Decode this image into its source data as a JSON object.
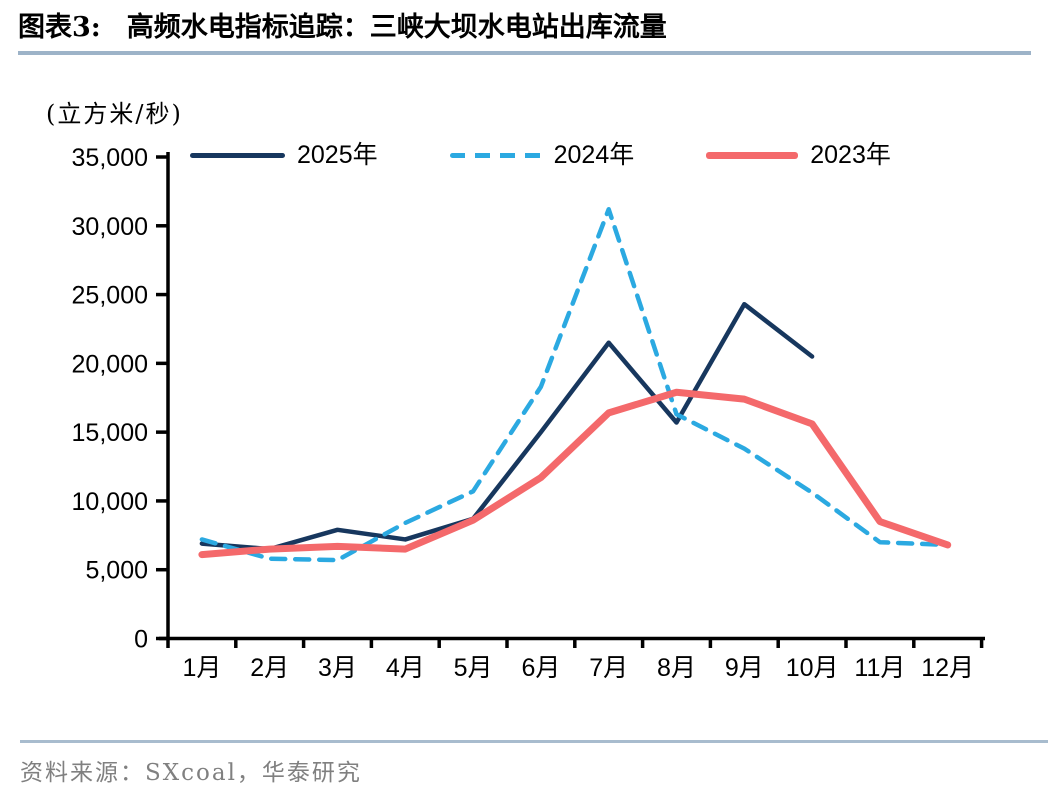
{
  "header": {
    "figure_label": "图表3:",
    "title": "高频水电指标追踪：三峡大坝水电站出库流量"
  },
  "chart_data": {
    "type": "line",
    "title": "三峡大坝水电站出库流量",
    "unit_label": "(立方米/秒)",
    "xlabel": "",
    "ylabel": "立方米/秒",
    "categories": [
      "1月",
      "2月",
      "3月",
      "4月",
      "5月",
      "6月",
      "7月",
      "8月",
      "9月",
      "10月",
      "11月",
      "12月"
    ],
    "series": [
      {
        "name": "2025年",
        "color": "#17375E",
        "style": "solid",
        "line_width": 4.5,
        "values": [
          6900,
          6500,
          7900,
          7200,
          8700,
          15000,
          21500,
          15700,
          24300,
          20500,
          null,
          null
        ]
      },
      {
        "name": "2024年",
        "color": "#2BA9E1",
        "style": "dashed",
        "line_width": 4.5,
        "values": [
          7200,
          5800,
          5700,
          8400,
          10700,
          18300,
          31200,
          16300,
          13800,
          10600,
          7000,
          6800
        ]
      },
      {
        "name": "2023年",
        "color": "#F4696B",
        "style": "solid",
        "line_width": 7,
        "values": [
          6100,
          6500,
          6700,
          6500,
          8600,
          11700,
          16400,
          17900,
          17400,
          15600,
          8500,
          6800
        ]
      }
    ],
    "ylim": [
      0,
      35000
    ],
    "ytick_step": 5000,
    "legend_position": "top",
    "grid": false,
    "axis_color": "#000000"
  },
  "footer": {
    "source_label": "资料来源：SXcoal，华泰研究"
  },
  "colors": {
    "title_rule": "#9DB3C8",
    "footer_rule": "#A8BCCE",
    "footer_text": "#808080"
  }
}
